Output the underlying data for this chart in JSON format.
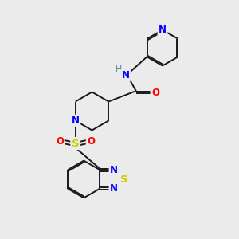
{
  "background_color": "#ebebeb",
  "bond_color": "#1a1a1a",
  "atom_colors": {
    "N": "#0000ff",
    "O": "#ff0000",
    "S": "#cccc00",
    "H": "#5a9a9a",
    "C": "#1a1a1a"
  },
  "font_size": 8.5,
  "line_width": 1.4
}
